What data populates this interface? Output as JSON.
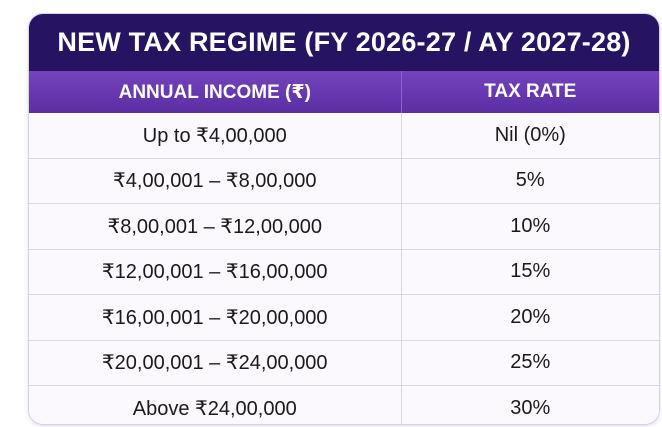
{
  "title": "NEW TAX REGIME (FY 2026-27 / AY 2027-28)",
  "columns": [
    "ANNUAL INCOME (₹)",
    "TAX RATE"
  ],
  "rows": [
    {
      "income": "Up to ₹4,00,000",
      "rate": "Nil (0%)"
    },
    {
      "income": "₹4,00,001 – ₹8,00,000",
      "rate": "5%"
    },
    {
      "income": "₹8,00,001 – ₹12,00,000",
      "rate": "10%"
    },
    {
      "income": "₹12,00,001 – ₹16,00,000",
      "rate": "15%"
    },
    {
      "income": "₹16,00,001 – ₹20,00,000",
      "rate": "20%"
    },
    {
      "income": "₹20,00,001 – ₹24,00,000",
      "rate": "25%"
    },
    {
      "income": "Above ₹24,00,000",
      "rate": "30%"
    }
  ],
  "colors": {
    "title_bg": "#261463",
    "header_bg": "#6a3ab5",
    "body_bg": "#fbf8fe",
    "text": "#1a1a1a"
  }
}
